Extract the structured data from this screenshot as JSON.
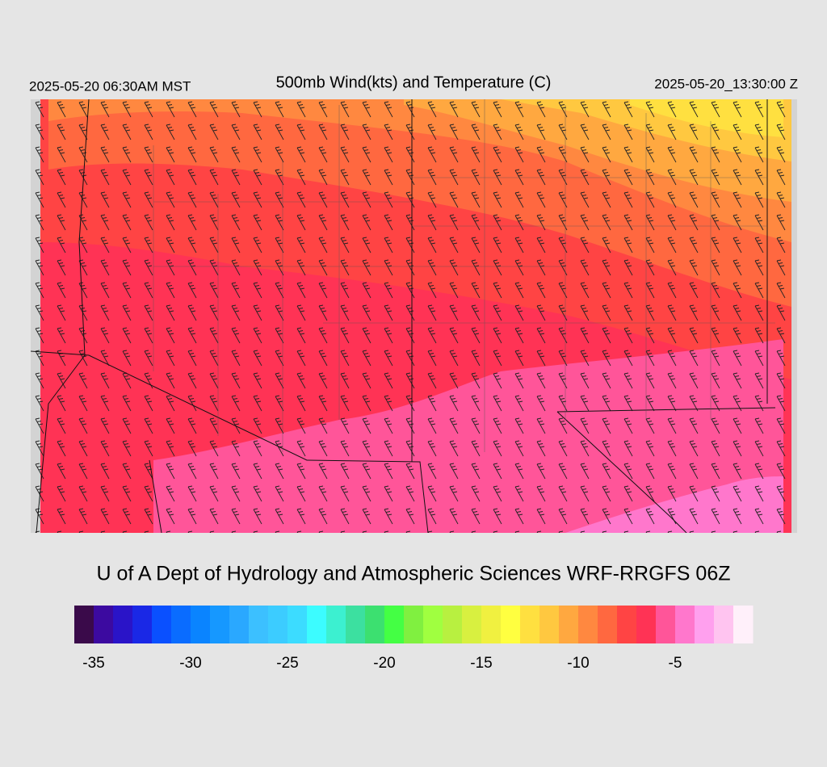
{
  "header": {
    "left": "2025-05-20 06:30AM MST",
    "title": "500mb Wind(kts) and Temperature (C)",
    "right": "2025-05-20_13:30:00 Z"
  },
  "credit": "U of A Dept of Hydrology and Atmospheric Sciences WRF-RRGFS 06Z",
  "colorbar": {
    "range": [
      -36,
      -1
    ],
    "colors": [
      "#3a0a4a",
      "#3c0aa0",
      "#2a14c8",
      "#1a28e6",
      "#0a50ff",
      "#0a6cff",
      "#0a84ff",
      "#1698ff",
      "#2aa8ff",
      "#3cc0ff",
      "#3cccff",
      "#3cdcff",
      "#3cfcff",
      "#3cf0d0",
      "#3ce0a0",
      "#3ce070",
      "#44ff44",
      "#80f040",
      "#a0ff40",
      "#b8f040",
      "#d8f040",
      "#f0f040",
      "#ffff40",
      "#ffe040",
      "#ffc840",
      "#ffa840",
      "#ff8840",
      "#ff6840",
      "#ff4444",
      "#ff3355",
      "#ff5599",
      "#ff77cc",
      "#ffa0ee",
      "#ffc4f0",
      "#fff0fa"
    ],
    "ticks": [
      -35,
      -30,
      -25,
      -20,
      -15,
      -10,
      -5
    ]
  }
}
